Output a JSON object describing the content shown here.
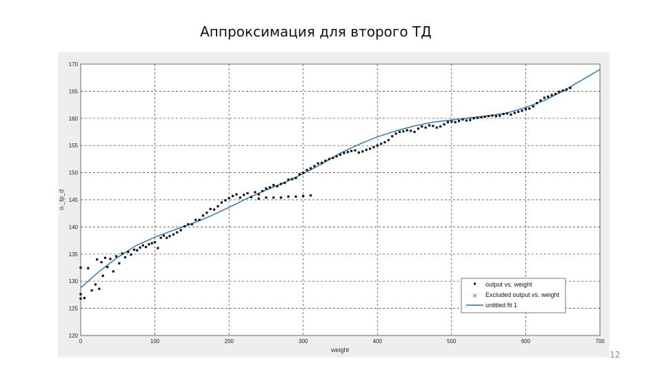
{
  "slide": {
    "title": "Аппроксимация для второго ТД",
    "page_number": "12"
  },
  "chart_data": {
    "type": "scatter",
    "xlabel": "weight",
    "ylabel": "o._tp_d",
    "xlim": [
      0,
      700
    ],
    "ylim": [
      120,
      170
    ],
    "x_ticks": [
      0,
      100,
      200,
      300,
      400,
      500,
      600,
      700
    ],
    "y_ticks": [
      120,
      125,
      130,
      135,
      140,
      145,
      150,
      155,
      160,
      165,
      170
    ],
    "y_tick_labels": [
      "120",
      "125",
      "130",
      "135",
      "140",
      "145",
      "150",
      "155",
      "160",
      "165",
      "170"
    ],
    "grid": true,
    "legend_position": "bottom-right",
    "legend": [
      "output vs. weight",
      "Excluded output vs. weight",
      "untitled fit 1"
    ],
    "colors": {
      "points": "#111111",
      "excluded": "#d62020",
      "fit": "#1f6fb0",
      "grid": "#333333"
    },
    "series": [
      {
        "name": "output vs. weight",
        "kind": "points",
        "x": [
          0,
          0,
          0,
          5,
          10,
          15,
          20,
          22,
          25,
          28,
          30,
          33,
          36,
          40,
          44,
          48,
          52,
          56,
          60,
          64,
          68,
          72,
          76,
          80,
          84,
          88,
          92,
          96,
          100,
          104,
          108,
          112,
          116,
          120,
          125,
          130,
          135,
          140,
          145,
          150,
          155,
          160,
          165,
          170,
          175,
          180,
          185,
          190,
          195,
          200,
          205,
          210,
          215,
          220,
          225,
          230,
          235,
          240,
          245,
          250,
          255,
          260,
          265,
          270,
          275,
          280,
          285,
          290,
          295,
          300,
          305,
          310,
          315,
          320,
          325,
          330,
          335,
          340,
          345,
          350,
          355,
          360,
          365,
          370,
          375,
          380,
          385,
          390,
          395,
          400,
          405,
          410,
          415,
          420,
          425,
          430,
          435,
          440,
          445,
          450,
          455,
          460,
          465,
          470,
          475,
          480,
          485,
          490,
          495,
          500,
          505,
          510,
          515,
          520,
          525,
          530,
          535,
          540,
          545,
          550,
          555,
          560,
          565,
          570,
          575,
          580,
          585,
          590,
          595,
          600,
          605,
          610,
          615,
          620,
          625,
          630,
          635,
          640,
          645,
          650,
          655,
          660,
          240,
          250,
          260,
          270,
          280,
          290,
          300,
          310
        ],
        "y": [
          126.8,
          127.6,
          132.5,
          126.9,
          132.4,
          128.3,
          129.4,
          134.0,
          128.6,
          133.5,
          131.0,
          134.3,
          132.6,
          134.1,
          131.8,
          134.6,
          133.3,
          135.1,
          134.4,
          135.4,
          134.9,
          135.8,
          135.7,
          136.2,
          136.6,
          136.3,
          136.8,
          137.0,
          137.2,
          136.1,
          138.0,
          138.4,
          138.0,
          138.3,
          138.6,
          139.0,
          139.4,
          140.1,
          140.5,
          140.5,
          141.3,
          141.3,
          142.1,
          142.6,
          143.3,
          143.2,
          143.8,
          144.5,
          144.9,
          145.3,
          145.7,
          146.0,
          145.4,
          145.9,
          146.2,
          145.5,
          146.4,
          146.0,
          146.6,
          147.1,
          147.3,
          147.7,
          147.5,
          147.9,
          148.1,
          148.7,
          148.8,
          149.0,
          149.7,
          150.0,
          150.5,
          150.8,
          151.2,
          151.7,
          151.8,
          152.2,
          152.5,
          152.7,
          153.0,
          153.3,
          153.6,
          153.8,
          154.0,
          154.1,
          153.7,
          153.9,
          154.2,
          154.4,
          154.7,
          155.0,
          155.3,
          155.6,
          156.0,
          156.7,
          157.2,
          157.5,
          157.6,
          157.8,
          157.7,
          157.5,
          158.1,
          158.5,
          158.3,
          158.7,
          158.6,
          158.3,
          158.5,
          158.9,
          159.3,
          159.4,
          159.3,
          159.5,
          159.8,
          159.6,
          159.7,
          160.0,
          160.1,
          160.2,
          160.3,
          160.4,
          160.5,
          160.4,
          160.5,
          160.8,
          160.9,
          160.7,
          161.0,
          161.2,
          161.4,
          161.7,
          161.8,
          162.2,
          162.8,
          163.3,
          163.8,
          164.0,
          164.3,
          164.5,
          164.9,
          165.1,
          165.3,
          165.6,
          145.2,
          145.4,
          145.4,
          145.4,
          145.6,
          145.6,
          145.7,
          145.8
        ]
      },
      {
        "name": "untitled fit 1",
        "kind": "line",
        "x": [
          0,
          25,
          50,
          75,
          100,
          125,
          150,
          175,
          200,
          225,
          250,
          275,
          300,
          325,
          350,
          375,
          400,
          425,
          450,
          475,
          500,
          525,
          550,
          575,
          600,
          625,
          650,
          675,
          700
        ],
        "y": [
          128.8,
          131.8,
          134.4,
          136.6,
          138.1,
          139.4,
          140.6,
          142.0,
          143.6,
          145.3,
          146.8,
          148.2,
          149.8,
          151.6,
          153.6,
          155.2,
          156.6,
          157.7,
          158.6,
          159.3,
          159.7,
          160.1,
          160.5,
          161.0,
          162.0,
          163.3,
          165.0,
          167.0,
          169.0
        ]
      }
    ]
  }
}
